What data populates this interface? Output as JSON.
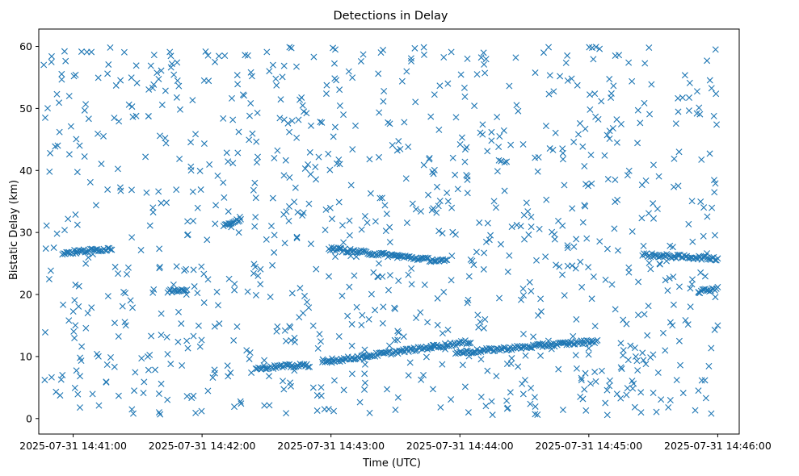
{
  "chart_data": {
    "type": "scatter",
    "title": "Detections in Delay",
    "xlabel": "Time (UTC)",
    "ylabel": "Bistatic Delay (km)",
    "x_unit": "seconds",
    "x_tick_labels": [
      "2025-07-31 14:41:00",
      "2025-07-31 14:42:00",
      "2025-07-31 14:43:00",
      "2025-07-31 14:44:00",
      "2025-07-31 14:45:00",
      "2025-07-31 14:46:00"
    ],
    "x_tick_values": [
      "2025-07-31 14:41:00",
      "2025-07-31 14:42:00",
      "2025-07-31 14:43:00",
      "2025-07-31 14:44:00",
      "2025-07-31 14:45:00",
      "2025-07-31 14:46:00"
    ],
    "xlim": [
      "2025-07-31 14:40:44",
      "2025-07-31 14:46:10"
    ],
    "y_ticks": [
      0,
      10,
      20,
      30,
      40,
      50,
      60
    ],
    "ylim": [
      -2.5,
      62.8
    ],
    "marker": "x",
    "marker_color": "#1f77b4",
    "grid": false,
    "tracks": [
      {
        "x": [
          "2025-07-31 14:40:55",
          "2025-07-31 14:41:18"
        ],
        "y": [
          26.7,
          27.4
        ]
      },
      {
        "x": [
          "2025-07-31 14:42:25",
          "2025-07-31 14:42:50"
        ],
        "y": [
          8.2,
          8.6
        ]
      },
      {
        "x": [
          "2025-07-31 14:42:59",
          "2025-07-31 14:43:54"
        ],
        "y": [
          27.4,
          25.3
        ]
      },
      {
        "x": [
          "2025-07-31 14:42:56",
          "2025-07-31 14:44:05"
        ],
        "y": [
          9.1,
          12.4
        ]
      },
      {
        "x": [
          "2025-07-31 14:43:58",
          "2025-07-31 14:45:04"
        ],
        "y": [
          10.6,
          12.5
        ]
      },
      {
        "x": [
          "2025-07-31 14:45:25",
          "2025-07-31 14:46:00"
        ],
        "y": [
          26.4,
          25.8
        ]
      },
      {
        "x": [
          "2025-07-31 14:42:10",
          "2025-07-31 14:42:18"
        ],
        "y": [
          31.2,
          32.0
        ]
      },
      {
        "x": [
          "2025-07-31 14:41:44",
          "2025-07-31 14:41:53"
        ],
        "y": [
          20.5,
          20.9
        ]
      },
      {
        "x": [
          "2025-07-31 14:45:51",
          "2025-07-31 14:46:00"
        ],
        "y": [
          20.5,
          21.0
        ]
      }
    ],
    "scatter_sample": [
      {
        "x": "2025-07-31 14:40:47",
        "y": 48.5
      },
      {
        "x": "2025-07-31 14:40:49",
        "y": 39.8
      },
      {
        "x": "2025-07-31 14:40:50",
        "y": 58.4
      },
      {
        "x": "2025-07-31 14:40:47",
        "y": 13.9
      },
      {
        "x": "2025-07-31 14:40:52",
        "y": 4.3
      },
      {
        "x": "2025-07-31 14:40:55",
        "y": 7.0
      },
      {
        "x": "2025-07-31 14:40:56",
        "y": 59.2
      },
      {
        "x": "2025-07-31 14:40:59",
        "y": 47.1
      },
      {
        "x": "2025-07-31 14:41:03",
        "y": 44.0
      },
      {
        "x": "2025-07-31 14:41:08",
        "y": 38.1
      },
      {
        "x": "2025-07-31 14:41:12",
        "y": 2.1
      },
      {
        "x": "2025-07-31 14:41:16",
        "y": 55.6
      },
      {
        "x": "2025-07-31 14:41:20",
        "y": 53.7
      },
      {
        "x": "2025-07-31 14:41:23",
        "y": 18.1
      },
      {
        "x": "2025-07-31 14:41:26",
        "y": 50.6
      },
      {
        "x": "2025-07-31 14:41:28",
        "y": 0.8
      },
      {
        "x": "2025-07-31 14:41:33",
        "y": 5.9
      },
      {
        "x": "2025-07-31 14:41:37",
        "y": 53.3
      },
      {
        "x": "2025-07-31 14:41:40",
        "y": 1.0
      },
      {
        "x": "2025-07-31 14:41:45",
        "y": 59.1
      },
      {
        "x": "2025-07-31 14:41:48",
        "y": 36.9
      },
      {
        "x": "2025-07-31 14:41:53",
        "y": 3.6
      },
      {
        "x": "2025-07-31 14:41:57",
        "y": 0.9
      },
      {
        "x": "2025-07-31 14:42:01",
        "y": 54.5
      },
      {
        "x": "2025-07-31 14:42:05",
        "y": 6.6
      },
      {
        "x": "2025-07-31 14:42:08",
        "y": 15.3
      },
      {
        "x": "2025-07-31 14:42:15",
        "y": 1.9
      },
      {
        "x": "2025-07-31 14:42:20",
        "y": 58.6
      },
      {
        "x": "2025-07-31 14:42:24",
        "y": 23.4
      },
      {
        "x": "2025-07-31 14:42:29",
        "y": 2.1
      },
      {
        "x": "2025-07-31 14:42:33",
        "y": 57.0
      },
      {
        "x": "2025-07-31 14:42:38",
        "y": 32.9
      },
      {
        "x": "2025-07-31 14:42:43",
        "y": 13.0
      },
      {
        "x": "2025-07-31 14:42:48",
        "y": 40.3
      },
      {
        "x": "2025-07-31 14:42:52",
        "y": 58.3
      },
      {
        "x": "2025-07-31 14:42:57",
        "y": 1.5
      },
      {
        "x": "2025-07-31 14:43:02",
        "y": 59.5
      },
      {
        "x": "2025-07-31 14:43:06",
        "y": 4.6
      },
      {
        "x": "2025-07-31 14:43:10",
        "y": 43.4
      },
      {
        "x": "2025-07-31 14:43:14",
        "y": 57.6
      },
      {
        "x": "2025-07-31 14:43:18",
        "y": 0.9
      },
      {
        "x": "2025-07-31 14:43:22",
        "y": 55.6
      },
      {
        "x": "2025-07-31 14:43:26",
        "y": 33.0
      },
      {
        "x": "2025-07-31 14:43:30",
        "y": 1.4
      },
      {
        "x": "2025-07-31 14:43:35",
        "y": 38.7
      },
      {
        "x": "2025-07-31 14:43:39",
        "y": 59.7
      },
      {
        "x": "2025-07-31 14:43:43",
        "y": 7.0
      },
      {
        "x": "2025-07-31 14:43:47",
        "y": 33.6
      },
      {
        "x": "2025-07-31 14:43:51",
        "y": 1.8
      },
      {
        "x": "2025-07-31 14:43:56",
        "y": 59.1
      },
      {
        "x": "2025-07-31 14:44:01",
        "y": 45.3
      },
      {
        "x": "2025-07-31 14:44:04",
        "y": 1.0
      },
      {
        "x": "2025-07-31 14:44:08",
        "y": 55.5
      },
      {
        "x": "2025-07-31 14:44:13",
        "y": 31.5
      },
      {
        "x": "2025-07-31 14:44:18",
        "y": 43.8
      },
      {
        "x": "2025-07-31 14:44:22",
        "y": 1.6
      },
      {
        "x": "2025-07-31 14:44:26",
        "y": 58.2
      },
      {
        "x": "2025-07-31 14:44:30",
        "y": 28.9
      },
      {
        "x": "2025-07-31 14:44:35",
        "y": 0.7
      },
      {
        "x": "2025-07-31 14:44:39",
        "y": 59.0
      },
      {
        "x": "2025-07-31 14:44:44",
        "y": 29.7
      },
      {
        "x": "2025-07-31 14:44:48",
        "y": 1.4
      },
      {
        "x": "2025-07-31 14:44:52",
        "y": 54.8
      },
      {
        "x": "2025-07-31 14:44:56",
        "y": 3.5
      },
      {
        "x": "2025-07-31 14:45:01",
        "y": 42.5
      },
      {
        "x": "2025-07-31 14:45:05",
        "y": 59.6
      },
      {
        "x": "2025-07-31 14:45:09",
        "y": 38.6
      },
      {
        "x": "2025-07-31 14:45:14",
        "y": 58.6
      },
      {
        "x": "2025-07-31 14:45:18",
        "y": 4.9
      },
      {
        "x": "2025-07-31 14:45:23",
        "y": 16.7
      },
      {
        "x": "2025-07-31 14:45:28",
        "y": 59.8
      },
      {
        "x": "2025-07-31 14:45:32",
        "y": 33.8
      },
      {
        "x": "2025-07-31 14:45:37",
        "y": 1.8
      },
      {
        "x": "2025-07-31 14:45:42",
        "y": 43.0
      },
      {
        "x": "2025-07-31 14:45:47",
        "y": 54.1
      },
      {
        "x": "2025-07-31 14:45:51",
        "y": 4.5
      },
      {
        "x": "2025-07-31 14:45:55",
        "y": 57.7
      },
      {
        "x": "2025-07-31 14:45:57",
        "y": 0.8
      },
      {
        "x": "2025-07-31 14:45:59",
        "y": 59.5
      },
      {
        "x": "2025-07-31 14:46:00",
        "y": 15.0
      }
    ],
    "noise_marker_count": 900
  }
}
